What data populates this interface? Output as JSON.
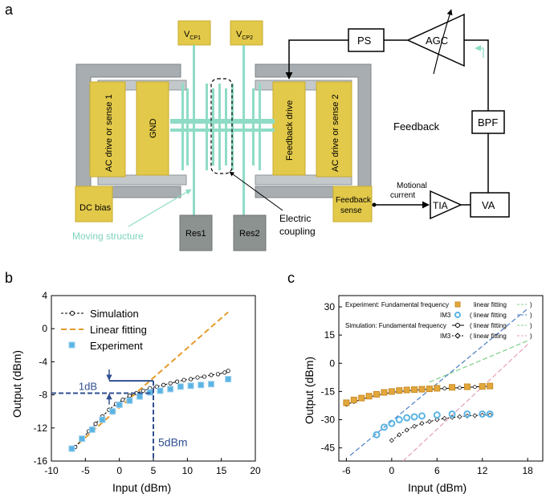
{
  "panels": {
    "a": "a",
    "b": "b",
    "c": "c"
  },
  "diagram": {
    "pads": {
      "vcp1": {
        "main": "V",
        "sub": "CP1"
      },
      "vcp2": {
        "main": "V",
        "sub": "CP2"
      },
      "ac_sense1": "AC drive or sense 1",
      "gnd": "GND",
      "feedback_drive": "Feedback drive",
      "ac_sense2": "AC drive or sense 2",
      "dc_bias": "DC bias",
      "feedback_sense_line1": "Feedback",
      "feedback_sense_line2": "sense",
      "res1": "Res1",
      "res2": "Res2"
    },
    "blocks": {
      "ps": "PS",
      "agc": "AGC",
      "bpf": "BPF",
      "tia": "TIA",
      "va": "VA"
    },
    "labels": {
      "feedback": "Feedback",
      "motional_line1": "Motional",
      "motional_line2": "current",
      "moving_structure": "Moving structure",
      "electric_line1": "Electric",
      "electric_line2": "coupling"
    },
    "colors": {
      "pad": "#e3c94a",
      "frame": "#9aa1a5",
      "beam": "#8fdcc6",
      "res": "#8c9290",
      "moving_text": "#7ed3bf"
    }
  },
  "chart_data": [
    {
      "type": "line",
      "panel": "b",
      "xlabel": "Input (dBm)",
      "ylabel": "Output (dBm)",
      "xlim": [
        -10,
        20
      ],
      "ylim": [
        -16,
        4
      ],
      "xticks": [
        -10,
        -5,
        0,
        5,
        10,
        15,
        20
      ],
      "yticks": [
        -16,
        -12,
        -8,
        -4,
        0,
        4
      ],
      "legend": [
        "Simulation",
        "Linear fitting",
        "Experiment"
      ],
      "series": [
        {
          "name": "Simulation",
          "color": "#000000",
          "x": [
            -6.5,
            -5.5,
            -4.5,
            -3.5,
            -2.5,
            -1.5,
            -0.5,
            0.5,
            1.5,
            2.5,
            3.5,
            4.5,
            5.5,
            6.5,
            7.5,
            8.5,
            9.5,
            10.5,
            11.5,
            12.5,
            13.5,
            14.5,
            15.5,
            16
          ],
          "y": [
            -14.3,
            -13.4,
            -12.4,
            -11.5,
            -10.6,
            -9.8,
            -9.1,
            -8.6,
            -8.1,
            -7.8,
            -7.5,
            -7.2,
            -7.0,
            -6.8,
            -6.6,
            -6.4,
            -6.2,
            -6.1,
            -5.9,
            -5.8,
            -5.6,
            -5.5,
            -5.3,
            -5.1
          ]
        },
        {
          "name": "Linear fitting",
          "color": "#e39b2c",
          "x": [
            -7,
            16
          ],
          "y": [
            -14.6,
            2.0
          ]
        },
        {
          "name": "Experiment",
          "color": "#5bb4e3",
          "x": [
            -7,
            -5.5,
            -4,
            -2.5,
            -1,
            0,
            1.5,
            3,
            4.5,
            6,
            7.5,
            9,
            10.5,
            12,
            13.5,
            16
          ],
          "y": [
            -14.5,
            -13.3,
            -12.2,
            -11.0,
            -10.0,
            -9.2,
            -8.7,
            -8.2,
            -7.7,
            -7.5,
            -7.3,
            -7.0,
            -6.9,
            -6.8,
            -6.7,
            -6.1
          ]
        }
      ],
      "annotations": {
        "db_label": "1dB",
        "input_label": "5dBm",
        "x_marker": 5,
        "y_marker": -7.8,
        "y_marker_top": -6.3
      }
    },
    {
      "type": "line",
      "panel": "c",
      "xlabel": "Input (dBm)",
      "ylabel": "Output (dBm)",
      "xlim": [
        -7,
        20
      ],
      "ylim": [
        -52,
        36
      ],
      "xticks": [
        -6,
        0,
        6,
        12,
        18
      ],
      "yticks": [
        -45,
        -30,
        -15,
        0,
        15,
        30
      ],
      "legend_text": {
        "exp_fund": "Experiment: Fundamental frequency",
        "exp_fund_fit": "linear fitting",
        "exp_im3": "IM3",
        "exp_im3_fit": "( linear fitting",
        "sim_fund": "Simulation: Fundamental frequency",
        "sim_fund_fit": "( linear fitting",
        "sim_im3": "IM3",
        "sim_im3_fit": "( linear fitting",
        "close_paren": ")"
      },
      "series": [
        {
          "name": "Experiment fundamental",
          "color": "#e39b2c",
          "x": [
            -6,
            -5,
            -4,
            -3,
            -2,
            -1,
            0,
            1,
            2,
            3,
            4,
            5,
            6,
            8,
            10,
            12,
            13
          ],
          "y": [
            -21,
            -19.5,
            -18.5,
            -17.5,
            -16.5,
            -15.5,
            -15,
            -14.5,
            -14.2,
            -14,
            -13.8,
            -13.6,
            -13.3,
            -12.8,
            -12.5,
            -12.3,
            -12.1
          ]
        },
        {
          "name": "Experiment fundamental fit",
          "color": "#7fcf8a",
          "x": [
            5,
            18
          ],
          "y": [
            -10,
            12
          ]
        },
        {
          "name": "Experiment IM3",
          "color": "#5bb4e3",
          "x": [
            -2,
            -1,
            0,
            1,
            2,
            3,
            4,
            6,
            8,
            10,
            12,
            13
          ],
          "y": [
            -38,
            -34,
            -32,
            -30,
            -29,
            -28.5,
            -28,
            -27.5,
            -27,
            -27,
            -27,
            -27
          ]
        },
        {
          "name": "Experiment IM3 fit",
          "color": "#4c7fc4",
          "x": [
            -5.5,
            18
          ],
          "y": [
            -49,
            29
          ]
        },
        {
          "name": "Simulation fundamental",
          "color": "#000000",
          "x": [
            -6,
            -5,
            -4,
            -3,
            -2,
            -1,
            0,
            1,
            2,
            3,
            4,
            5,
            6,
            7,
            8,
            9,
            10,
            11,
            12,
            13
          ],
          "y": [
            -22,
            -20.5,
            -19.2,
            -18,
            -17,
            -16.2,
            -15.5,
            -15,
            -14.6,
            -14.3,
            -14,
            -13.8,
            -13.6,
            -13.4,
            -13.2,
            -13,
            -12.8,
            -12.6,
            -12.4,
            -12.2
          ]
        },
        {
          "name": "Simulation IM3",
          "color": "#000000",
          "x": [
            0,
            1,
            2,
            3,
            4,
            5,
            6,
            7,
            8,
            9,
            10,
            11,
            12,
            13
          ],
          "y": [
            -41,
            -38,
            -35.5,
            -33.5,
            -32,
            -31,
            -30,
            -29.3,
            -28.8,
            -28.4,
            -28,
            -27.8,
            -27.6,
            -27.5
          ]
        },
        {
          "name": "Simulation IM3 fit",
          "color": "#e2a0b8",
          "x": [
            1.5,
            18
          ],
          "y": [
            -52,
            10
          ]
        }
      ]
    }
  ]
}
